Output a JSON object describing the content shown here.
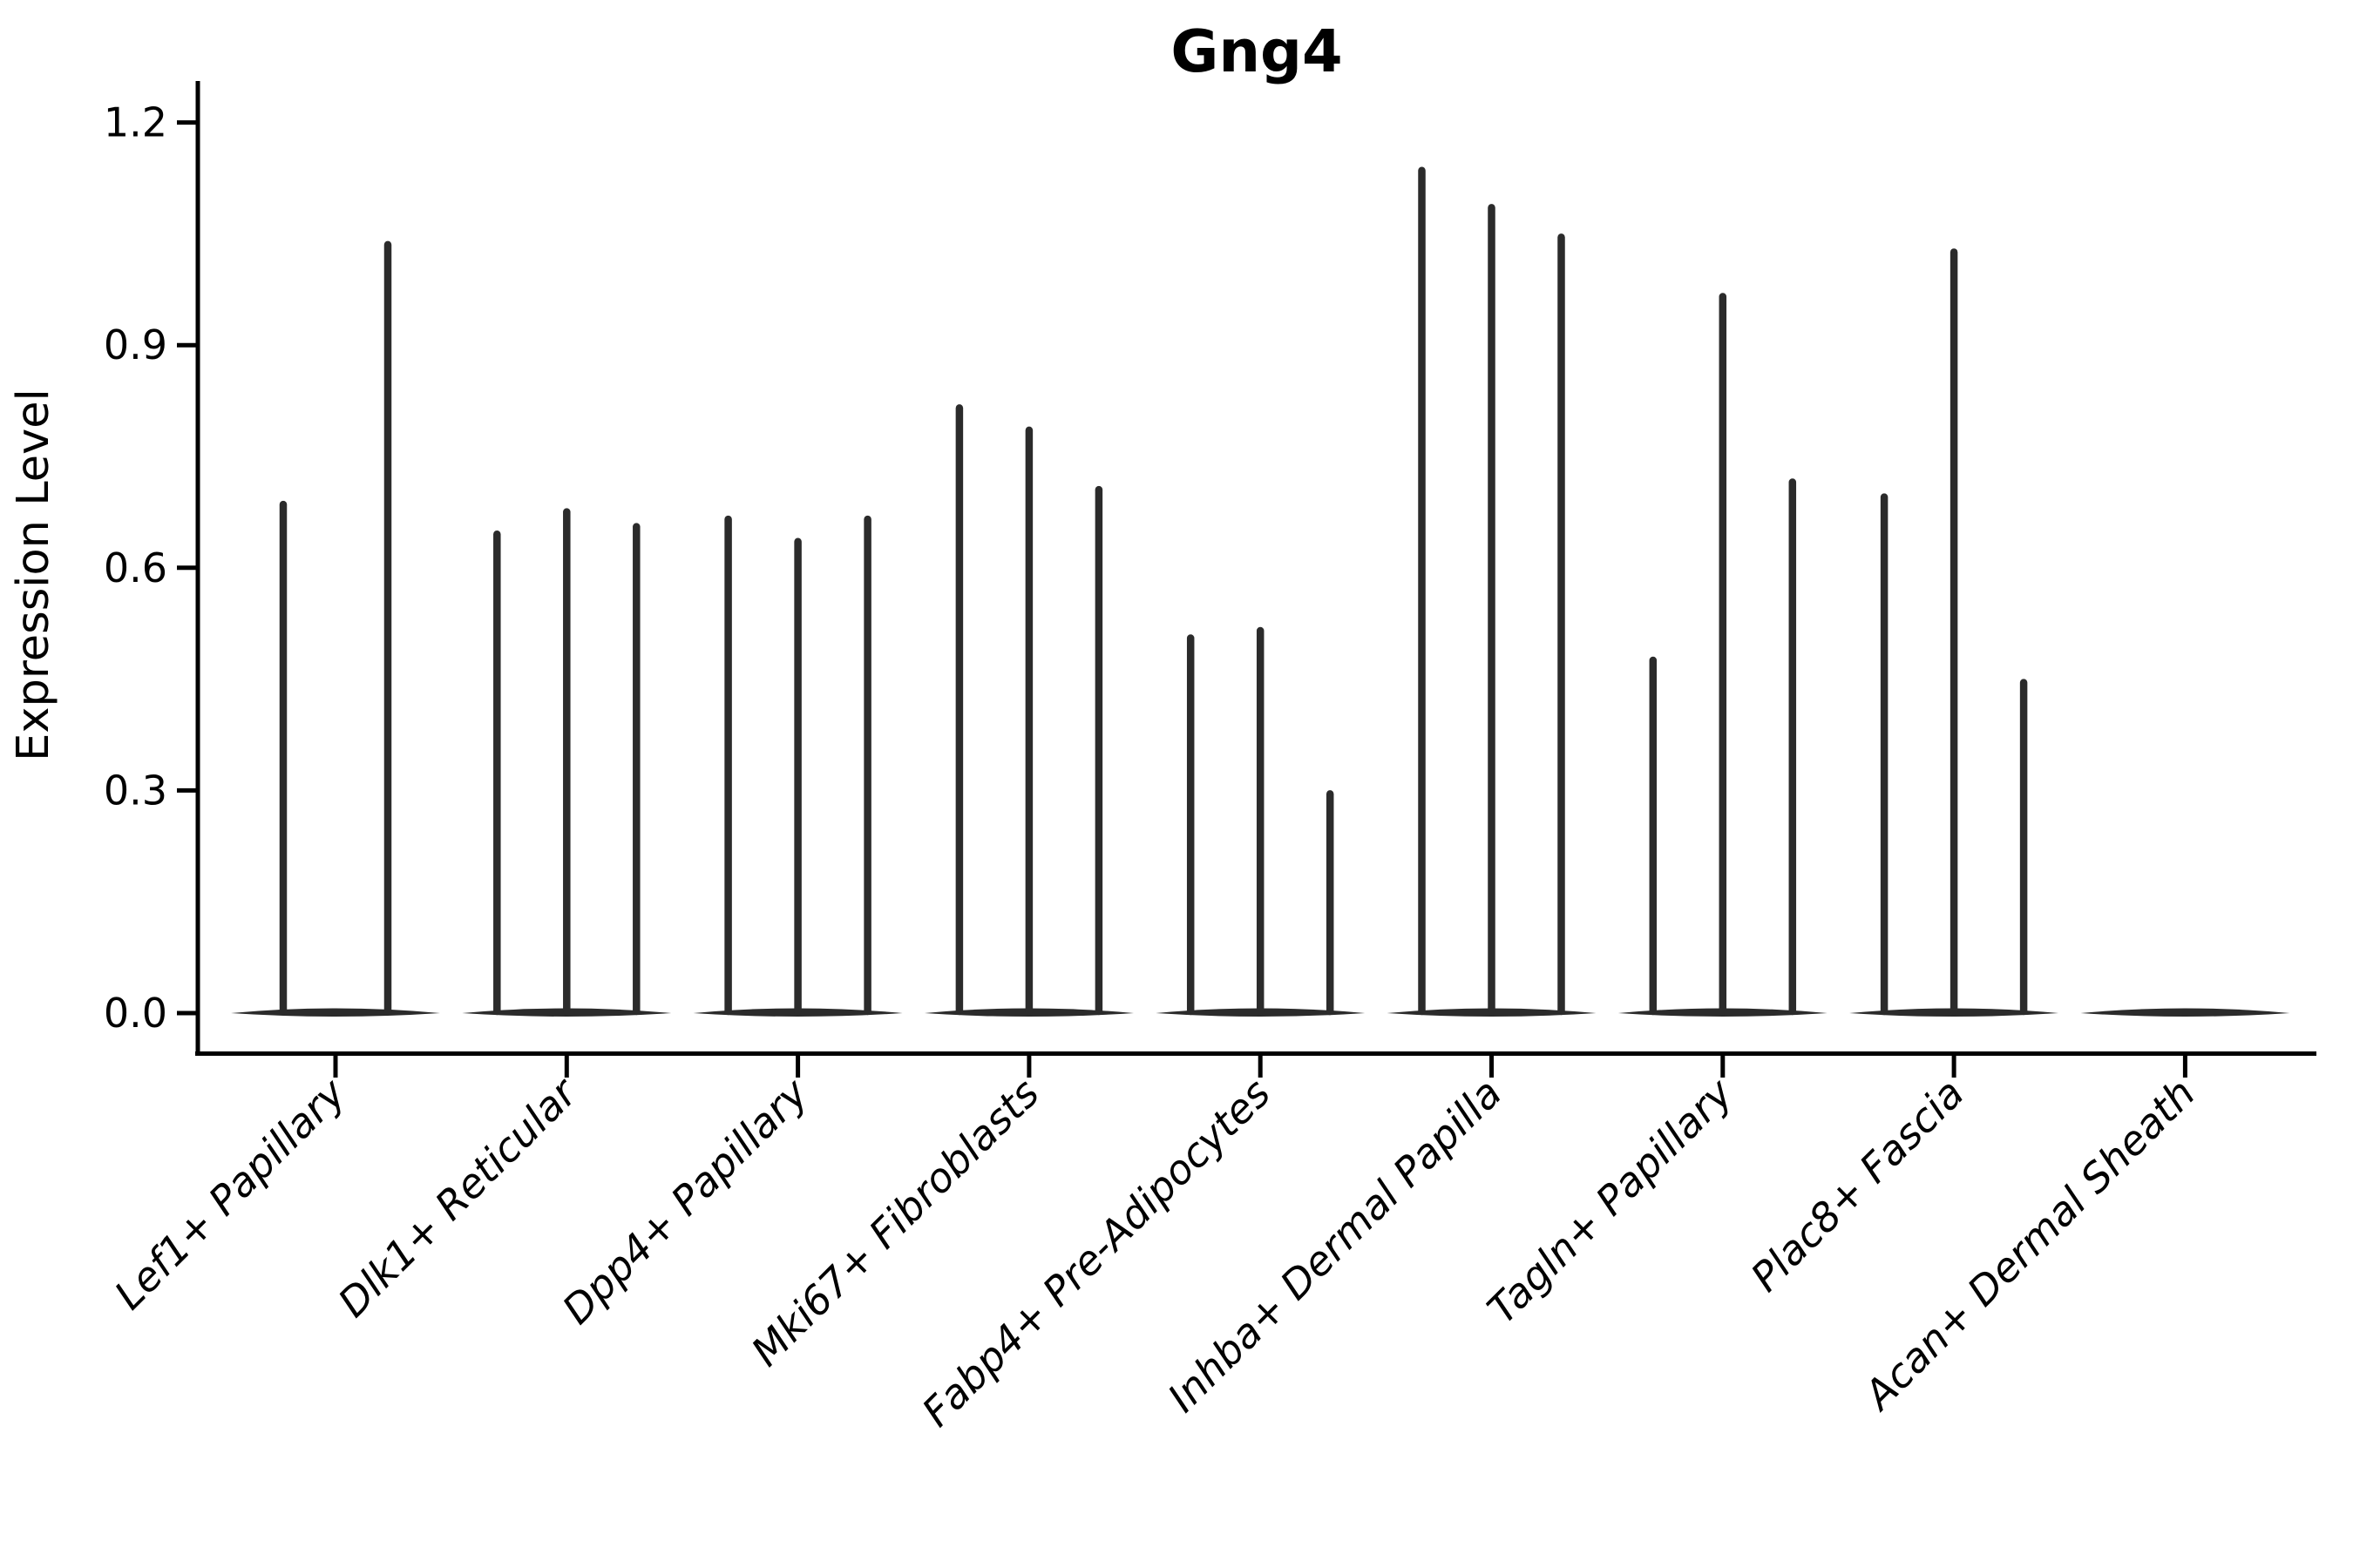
{
  "title": "Gng4",
  "chart_data": {
    "type": "violin",
    "title": "Gng4",
    "xlabel": "",
    "ylabel": "Expression Level",
    "ylim": [
      0,
      1.2
    ],
    "yticks": [
      0.0,
      0.3,
      0.6,
      0.9,
      1.2
    ],
    "ytick_labels": [
      "0.0",
      "0.3",
      "0.6",
      "0.9",
      "1.2"
    ],
    "grid": false,
    "legend_position": "none",
    "description": "Stacked-violin style expression plot; each category shows flat violins at 0 with thin spikes reaching the max expression of each sub-violin",
    "categories": [
      {
        "label": "Lef1+ Papillary",
        "spike_max": [
          0.69,
          1.04
        ]
      },
      {
        "label": "Dlk1+ Reticular",
        "spike_max": [
          0.65,
          0.68,
          0.66
        ]
      },
      {
        "label": "Dpp4+ Papillary",
        "spike_max": [
          0.67,
          0.64,
          0.67
        ]
      },
      {
        "label": "Mki67+ Fibroblasts",
        "spike_max": [
          0.82,
          0.79,
          0.71
        ]
      },
      {
        "label": "Fabp4+ Pre-Adipocytes",
        "spike_max": [
          0.51,
          0.52,
          0.3
        ]
      },
      {
        "label": "Inhba+ Dermal Papilla",
        "spike_max": [
          1.14,
          1.09,
          1.05
        ]
      },
      {
        "label": "Tagln+ Papillary",
        "spike_max": [
          0.48,
          0.97,
          0.72
        ]
      },
      {
        "label": "Plac8+ Fascia",
        "spike_max": [
          0.7,
          1.03,
          0.45
        ]
      },
      {
        "label": "Acan+ Dermal Sheath",
        "spike_max": []
      }
    ],
    "colors": {
      "ink": "#000000",
      "violin": "#2b2b2b",
      "background": "#ffffff"
    }
  }
}
